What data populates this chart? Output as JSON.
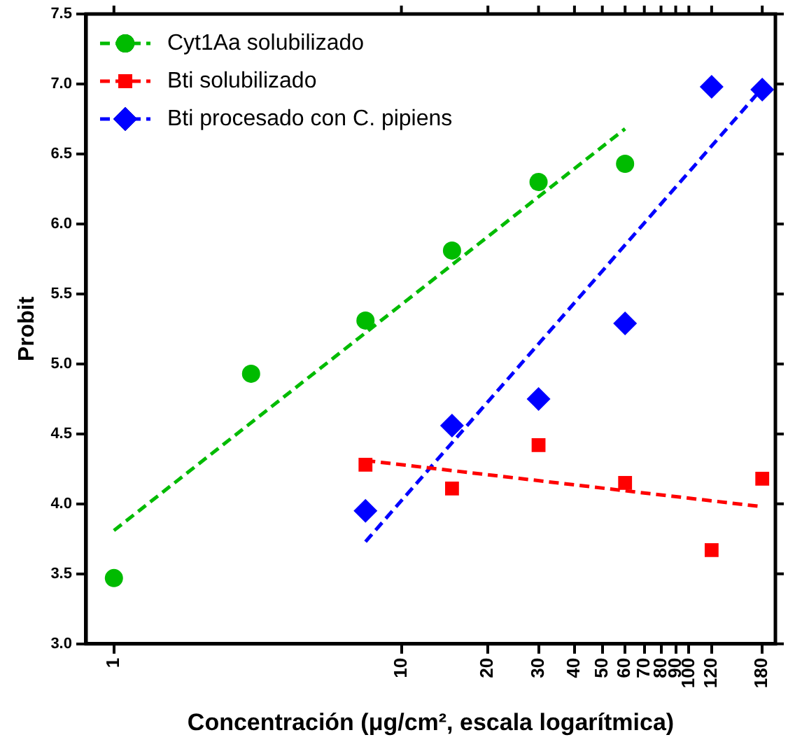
{
  "chart_data": {
    "type": "scatter",
    "xlabel": "Concentración (μg/cm², escala logarítmica)",
    "ylabel": "Probit",
    "log": "x",
    "grid": false,
    "legend": "top left",
    "xlim": [
      0.8,
      200
    ],
    "xticks": [
      1,
      10,
      20,
      30,
      40,
      50,
      60,
      70,
      80,
      90,
      100,
      120,
      180
    ],
    "ylim": [
      3,
      7.5
    ],
    "yticks": [
      {
        "value": 3,
        "label": "3.0"
      },
      {
        "value": 3.5,
        "label": "3.5"
      },
      {
        "value": 4,
        "label": "4.0"
      },
      {
        "value": 4.5,
        "label": "4.5"
      },
      {
        "value": 5,
        "label": "5.0"
      },
      {
        "value": 5.5,
        "label": "5.5"
      },
      {
        "value": 6,
        "label": "6.0"
      },
      {
        "value": 6.5,
        "label": "6.5"
      },
      {
        "value": 7,
        "label": "7.0"
      },
      {
        "value": 7.5,
        "label": "7.5"
      }
    ],
    "series": [
      {
        "name": "Cyt1Aa solubilizado",
        "type": "scatter",
        "marker": "circle",
        "color": "#00bb00",
        "x": [
          1,
          3,
          7.5,
          15,
          30,
          60
        ],
        "values": [
          3.47,
          4.93,
          5.31,
          5.81,
          6.3,
          6.43
        ]
      },
      {
        "name": "Bti solubilizado",
        "type": "scatter",
        "marker": "square",
        "color": "#ff0000",
        "x": [
          7.5,
          15,
          30,
          60,
          120,
          180
        ],
        "values": [
          4.28,
          4.11,
          4.42,
          4.15,
          3.67,
          4.18
        ]
      },
      {
        "name": "Bti procesado con C. pipiens",
        "type": "scatter",
        "marker": "diamond",
        "color": "#0000ff",
        "x": [
          7.5,
          15,
          30,
          60,
          120,
          180
        ],
        "values": [
          3.95,
          4.56,
          4.75,
          5.29,
          6.98,
          6.96
        ]
      },
      {
        "type": "line",
        "marker": "none",
        "line_style": "dashed",
        "color": "#00bb00",
        "x": [
          1,
          60
        ],
        "values": [
          3.81,
          6.68
        ]
      },
      {
        "type": "line",
        "marker": "none",
        "line_style": "dashed",
        "color": "#ff0000",
        "x": [
          7.5,
          180
        ],
        "values": [
          4.31,
          3.98
        ]
      },
      {
        "type": "line",
        "marker": "none",
        "line_style": "dashed",
        "color": "#0000ff",
        "x": [
          7.5,
          180
        ],
        "values": [
          3.73,
          6.97
        ]
      }
    ]
  }
}
